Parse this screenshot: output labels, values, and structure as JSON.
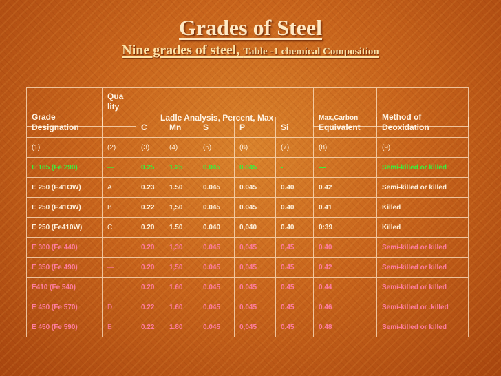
{
  "title": "Grades of Steel",
  "subtitle": {
    "main": "Nine grades of steel, ",
    "small": "Table -1 chemical Composition"
  },
  "table": {
    "header": {
      "grade_top": "Grade",
      "grade_bottom": "Designation",
      "quality": "Qua\nlity",
      "ladle": "Ladle Analysis, Percent, Max",
      "c": "C",
      "mn": "Mn",
      "s": "S",
      "p": "P",
      "si": "Si",
      "carbon_top": "Max,Carbon",
      "carbon_bottom": "Equivalent",
      "method_top": "Method of",
      "method_bottom": "Deoxidation"
    },
    "column_numbers": [
      "(1)",
      "(2)",
      "(3)",
      "(4)",
      "(5)",
      "(6)",
      "(7)",
      "(8)",
      "(9)"
    ],
    "rows": [
      {
        "color": "#3cf03c",
        "cells": [
          "E 165 (Fe 290)",
          "—",
          "0.25",
          "1.25",
          "0.045",
          "0.045",
          "-",
          "—",
          "Semi-killed or killed"
        ]
      },
      {
        "color": "#fff1dc",
        "cells": [
          "E 250 (F.41OW)",
          "A",
          "0.23",
          "1.50",
          "0.045",
          "0.045",
          "0.40",
          "0.42",
          "Semi-killed or killed"
        ]
      },
      {
        "color": "#fff1dc",
        "cells": [
          "E 250 (F.41OW)",
          "B",
          "0.22",
          "1,50",
          "0.045",
          "0.045",
          "0.40",
          "0.41",
          "Killed"
        ]
      },
      {
        "color": "#fff1dc",
        "cells": [
          "E 250 (Fe410W)",
          "C",
          "0.20",
          "1.50",
          "0.040",
          "0,040",
          "0.40",
          "0:39",
          "Killed"
        ]
      },
      {
        "color": "#ff7da0",
        "cells": [
          "E 300 (Fe 440)",
          "",
          "0.20",
          "1,30",
          "0.045",
          "0,045",
          "0,45",
          "0.40",
          "Semi-killed or killed"
        ]
      },
      {
        "color": "#ff7da0",
        "cells": [
          "E 350 (Fe 490)",
          "—",
          "0.20",
          "1,50",
          "0.045",
          "0,045",
          "0.45",
          "0.42",
          "Semi-killed or killed"
        ]
      },
      {
        "color": "#ff7da0",
        "cells": [
          "E410 (Fe 540)",
          "",
          "0.20",
          "1.60",
          "0.045",
          "0.045",
          "0.45",
          "0.44",
          "Semi-killed or killed"
        ]
      },
      {
        "color": "#ff7da0",
        "cells": [
          "E 450 (Fe 570)",
          "D",
          "0.22",
          "1.60",
          "0.045",
          "0.045",
          "0.45",
          "0.46",
          "Semi-killed or .killed"
        ]
      },
      {
        "color": "#ff7da0",
        "cells": [
          "E 450 (Fe 590)",
          "E",
          "0.22",
          "1.80",
          "0.045",
          "0,045",
          "0.45",
          "0.48",
          "Semi-killed or killed"
        ]
      }
    ]
  }
}
